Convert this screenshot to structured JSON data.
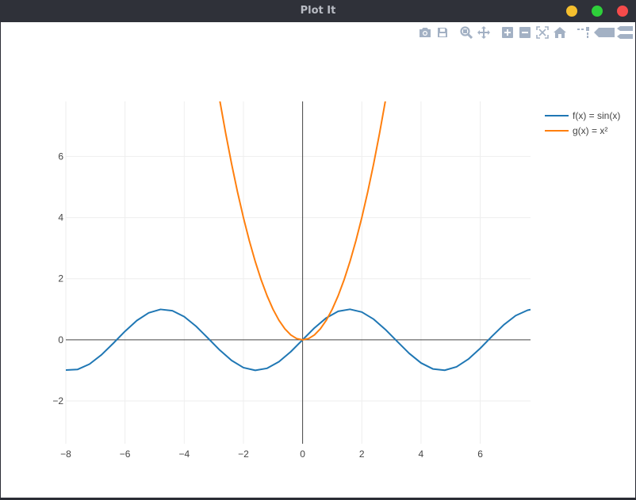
{
  "window": {
    "title": "Plot It",
    "buttons": [
      {
        "name": "minimize",
        "color": "#f5bf2e"
      },
      {
        "name": "maximize",
        "color": "#2ed03a"
      },
      {
        "name": "close",
        "color": "#f64b4b"
      }
    ]
  },
  "modebar": {
    "icons": [
      "camera-icon",
      "save-icon",
      "zoom-icon",
      "pan-icon",
      "zoom-in-icon",
      "zoom-out-icon",
      "autoscale-icon",
      "home-icon",
      "spike-lines-icon",
      "hover-closest-icon",
      "hover-compare-icon"
    ],
    "icon_color": "#a3b1c4"
  },
  "chart_data": {
    "type": "line",
    "xlim": [
      -8,
      7.7
    ],
    "ylim": [
      -3.4,
      7.8
    ],
    "x_ticks": [
      -8,
      -6,
      -4,
      -2,
      0,
      2,
      4,
      6
    ],
    "y_ticks": [
      -2,
      0,
      2,
      4,
      6
    ],
    "x_tick_labels": [
      "−8",
      "−6",
      "−4",
      "−2",
      "0",
      "2",
      "4",
      "6"
    ],
    "y_tick_labels": [
      "−2",
      "0",
      "2",
      "4",
      "6"
    ],
    "grid": true,
    "zero_lines": true,
    "legend_position": "top-right",
    "series": [
      {
        "name": "f(x) = sin(x)",
        "color": "#1f77b4",
        "x": [
          -8,
          -7.6,
          -7.2,
          -6.8,
          -6.4,
          -6,
          -5.6,
          -5.2,
          -4.8,
          -4.4,
          -4,
          -3.6,
          -3.2,
          -2.8,
          -2.4,
          -2,
          -1.6,
          -1.2,
          -0.8,
          -0.4,
          0,
          0.4,
          0.8,
          1.2,
          1.6,
          2,
          2.4,
          2.8,
          3.2,
          3.6,
          4,
          4.4,
          4.8,
          5.2,
          5.6,
          6,
          6.4,
          6.8,
          7.2,
          7.6,
          7.7
        ],
        "y": [
          -0.989,
          -0.968,
          -0.794,
          -0.494,
          -0.117,
          0.279,
          0.631,
          0.883,
          0.996,
          0.952,
          0.757,
          0.443,
          0.058,
          -0.335,
          -0.675,
          -0.909,
          -0.9996,
          -0.932,
          -0.717,
          -0.389,
          0,
          0.389,
          0.717,
          0.932,
          0.9996,
          0.909,
          0.675,
          0.335,
          -0.058,
          -0.443,
          -0.757,
          -0.952,
          -0.996,
          -0.883,
          -0.631,
          -0.279,
          0.117,
          0.494,
          0.794,
          0.968,
          0.988
        ]
      },
      {
        "name": "g(x) = x²",
        "color": "#ff7f0e",
        "x": [
          -2.8,
          -2.6,
          -2.4,
          -2.2,
          -2,
          -1.8,
          -1.6,
          -1.4,
          -1.2,
          -1,
          -0.8,
          -0.6,
          -0.4,
          -0.2,
          0,
          0.2,
          0.4,
          0.6,
          0.8,
          1,
          1.2,
          1.4,
          1.6,
          1.8,
          2,
          2.2,
          2.4,
          2.6,
          2.8
        ],
        "y": [
          7.84,
          6.76,
          5.76,
          4.84,
          4,
          3.24,
          2.56,
          1.96,
          1.44,
          1,
          0.64,
          0.36,
          0.16,
          0.04,
          0,
          0.04,
          0.16,
          0.36,
          0.64,
          1,
          1.44,
          1.96,
          2.56,
          3.24,
          4,
          4.84,
          5.76,
          6.76,
          7.84
        ]
      }
    ]
  }
}
